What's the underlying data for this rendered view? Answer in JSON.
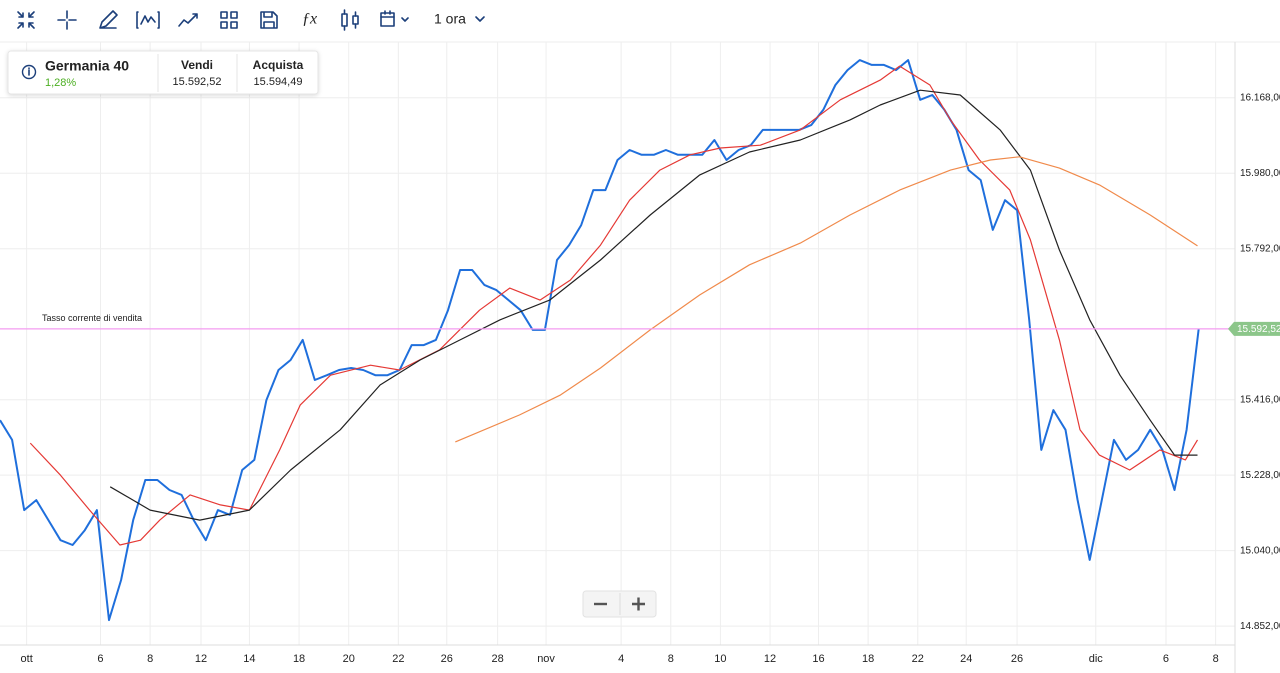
{
  "toolbar": {
    "interval": "1 ora"
  },
  "instrument": {
    "name": "Germania 40",
    "change": "1,28%",
    "sell_label": "Vendi",
    "sell": "15.592,52",
    "buy_label": "Acquista",
    "buy": "15.594,49"
  },
  "chart_data": {
    "type": "line",
    "xlim": [
      0,
      102
    ],
    "xticks": [
      {
        "value": 2.2,
        "label": "ott"
      },
      {
        "value": 8.3,
        "label": "6"
      },
      {
        "value": 12.4,
        "label": "8"
      },
      {
        "value": 16.6,
        "label": "12"
      },
      {
        "value": 20.6,
        "label": "14"
      },
      {
        "value": 24.7,
        "label": "18"
      },
      {
        "value": 28.8,
        "label": "20"
      },
      {
        "value": 32.9,
        "label": "22"
      },
      {
        "value": 36.9,
        "label": "26"
      },
      {
        "value": 41.1,
        "label": "28"
      },
      {
        "value": 45.1,
        "label": "nov"
      },
      {
        "value": 51.3,
        "label": "4"
      },
      {
        "value": 55.4,
        "label": "8"
      },
      {
        "value": 59.5,
        "label": "10"
      },
      {
        "value": 63.6,
        "label": "12"
      },
      {
        "value": 67.6,
        "label": "16"
      },
      {
        "value": 71.7,
        "label": "18"
      },
      {
        "value": 75.8,
        "label": "22"
      },
      {
        "value": 79.8,
        "label": "24"
      },
      {
        "value": 84.0,
        "label": "26"
      },
      {
        "value": 90.5,
        "label": "dic"
      },
      {
        "value": 96.3,
        "label": "6"
      },
      {
        "value": 100.4,
        "label": "8"
      }
    ],
    "ylim": [
      14805,
      16307
    ],
    "yticks": [
      {
        "value": 14852,
        "label": "14.852,00"
      },
      {
        "value": 15040,
        "label": "15.040,00"
      },
      {
        "value": 15228,
        "label": "15.228,00"
      },
      {
        "value": 15416,
        "label": "15.416,00"
      },
      {
        "value": 15792,
        "label": "15.792,00"
      },
      {
        "value": 15980,
        "label": "15.980,00"
      },
      {
        "value": 16168,
        "label": "16.168,00"
      }
    ],
    "grid": true,
    "current_rate": {
      "label": "Tasso corrente di vendita",
      "value": 15592.52,
      "value_label": "15.592,52",
      "color": "#f49cf0",
      "badge_color": "#8cc68a"
    },
    "series": [
      {
        "color": "#1f6fdc",
        "values": [
          15365,
          15316,
          15141,
          15166,
          15116,
          15066,
          15054,
          15091,
          15141,
          14867,
          14967,
          15116,
          15216,
          15216,
          15191,
          15179,
          15116,
          15066,
          15141,
          15129,
          15241,
          15266,
          15415,
          15490,
          15515,
          15565,
          15465,
          15477,
          15490,
          15495,
          15490,
          15477,
          15477,
          15490,
          15552,
          15552,
          15565,
          15639,
          15739,
          15739,
          15702,
          15689,
          15664,
          15639,
          15590,
          15590,
          15764,
          15801,
          15851,
          15938,
          15938,
          16013,
          16038,
          16026,
          16026,
          16038,
          16026,
          16026,
          16026,
          16063,
          16013,
          16038,
          16050,
          16088,
          16088,
          16088,
          16088,
          16100,
          16138,
          16200,
          16237,
          16262,
          16250,
          16250,
          16237,
          16262,
          16163,
          16175,
          16138,
          16088,
          15988,
          15963,
          15839,
          15913,
          15888,
          15615,
          15291,
          15390,
          15341,
          15166,
          15017,
          15166,
          15316,
          15266,
          15291,
          15341,
          15291,
          15191,
          15341,
          15592.52
        ]
      },
      {
        "color": "#e53935",
        "x": [
          2.5,
          5.0,
          7.4,
          9.9,
          11.6,
          13.2,
          15.7,
          18.2,
          20.6,
          23.1,
          24.8,
          27.3,
          30.6,
          33.0,
          36.3,
          39.6,
          42.1,
          44.6,
          47.1,
          49.6,
          52.0,
          54.5,
          57.0,
          59.5,
          62.8,
          66.1,
          69.4,
          72.7,
          74.3,
          76.8,
          78.5,
          80.9,
          83.4,
          85.1,
          87.5,
          89.2,
          90.8,
          93.3,
          95.8,
          97.9,
          98.9
        ],
        "values": [
          15308,
          15228,
          15141,
          15054,
          15066,
          15116,
          15179,
          15154,
          15141,
          15291,
          15403,
          15477,
          15502,
          15490,
          15540,
          15639,
          15694,
          15664,
          15714,
          15801,
          15913,
          15988,
          16026,
          16043,
          16050,
          16088,
          16163,
          16212,
          16247,
          16200,
          16113,
          16013,
          15938,
          15814,
          15565,
          15341,
          15278,
          15241,
          15291,
          15266,
          15316
        ]
      },
      {
        "color": "#222222",
        "x": [
          9.1,
          12.4,
          16.5,
          20.6,
          24.0,
          28.1,
          31.4,
          34.7,
          38.0,
          41.3,
          45.4,
          49.6,
          53.7,
          57.8,
          61.9,
          66.1,
          70.2,
          72.7,
          76.0,
          79.3,
          82.6,
          85.1,
          87.5,
          90.0,
          92.5,
          95.0,
          97.0,
          98.9
        ],
        "values": [
          15199,
          15141,
          15116,
          15141,
          15241,
          15341,
          15453,
          15515,
          15565,
          15615,
          15664,
          15764,
          15876,
          15976,
          16033,
          16063,
          16113,
          16150,
          16187,
          16175,
          16088,
          15988,
          15789,
          15615,
          15477,
          15365,
          15278,
          15278
        ]
      },
      {
        "color": "#f08a4b",
        "x": [
          37.6,
          42.9,
          46.3,
          49.6,
          53.7,
          57.8,
          61.9,
          66.1,
          70.2,
          74.3,
          78.5,
          81.8,
          84.2,
          87.5,
          90.8,
          95.0,
          98.9
        ],
        "values": [
          15311,
          15378,
          15428,
          15495,
          15590,
          15677,
          15752,
          15806,
          15876,
          15938,
          15988,
          16013,
          16021,
          15993,
          15951,
          15876,
          15799
        ]
      }
    ]
  }
}
